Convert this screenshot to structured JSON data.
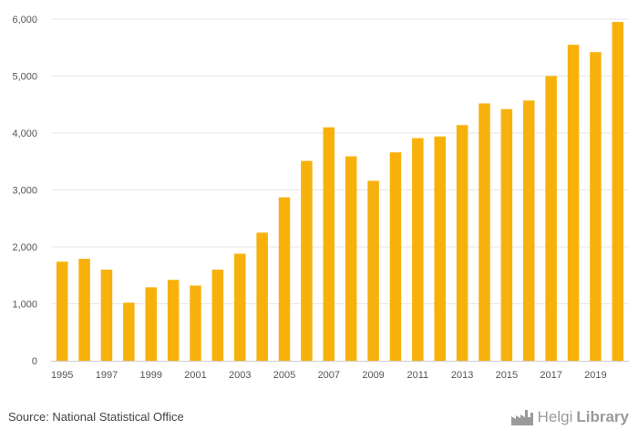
{
  "chart_data": {
    "type": "bar",
    "title": "",
    "xlabel": "",
    "ylabel": "",
    "ylim": [
      0,
      6000
    ],
    "yticks": [
      0,
      1000,
      2000,
      3000,
      4000,
      5000,
      6000
    ],
    "ytick_labels": [
      "0",
      "1,000",
      "2,000",
      "3,000",
      "4,000",
      "5,000",
      "6,000"
    ],
    "categories": [
      "1995",
      "1996",
      "1997",
      "1998",
      "1999",
      "2000",
      "2001",
      "2002",
      "2003",
      "2004",
      "2005",
      "2006",
      "2007",
      "2008",
      "2009",
      "2010",
      "2011",
      "2012",
      "2013",
      "2014",
      "2015",
      "2016",
      "2017",
      "2018",
      "2019",
      "2020"
    ],
    "xtick_labels": [
      "1995",
      "1997",
      "1999",
      "2001",
      "2003",
      "2005",
      "2007",
      "2009",
      "2011",
      "2013",
      "2015",
      "2017",
      "2019"
    ],
    "values": [
      1740,
      1790,
      1600,
      1020,
      1290,
      1420,
      1320,
      1600,
      1880,
      2250,
      2870,
      3510,
      4100,
      3590,
      3160,
      3660,
      3910,
      3940,
      4140,
      4520,
      4420,
      4570,
      5000,
      5550,
      5420,
      5950
    ],
    "bar_color": "#F7B10A",
    "grid": true
  },
  "footer": {
    "source": "Source: National Statistical Office",
    "brand_part1": "Helgi",
    "brand_part2": "Library",
    "brand_icon": "factory-icon"
  }
}
